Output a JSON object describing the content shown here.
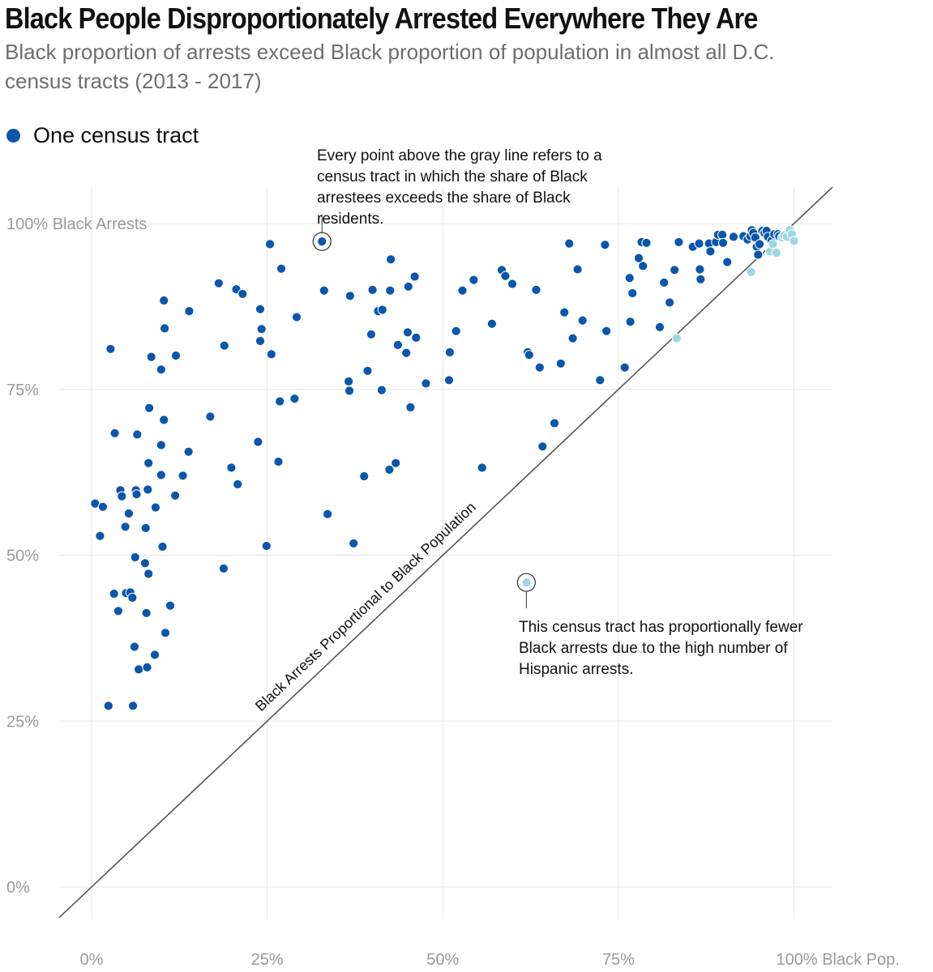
{
  "header": {
    "title": "Black People Disproportionately Arrested Everywhere They Are",
    "subtitle": "Black proportion of arrests exceed Black proportion of population in almost all D.C. census tracts (2013 - 2017)"
  },
  "legend": {
    "label": "One census tract",
    "color": "#0a56ab"
  },
  "chart_data": {
    "type": "scatter",
    "title": "Black People Disproportionately Arrested Everywhere They Are",
    "subtitle": "Black proportion of arrests exceed Black proportion of population in almost all D.C. census tracts (2013 - 2017)",
    "xlabel": "Black Pop.",
    "ylabel": "Black Arrests",
    "xlim": [
      0,
      100
    ],
    "ylim": [
      0,
      100
    ],
    "x_ticks": [
      {
        "value": 0,
        "label": "0%"
      },
      {
        "value": 25,
        "label": "25%"
      },
      {
        "value": 50,
        "label": "50%"
      },
      {
        "value": 75,
        "label": "75%"
      },
      {
        "value": 100,
        "label": "100% Black Pop."
      }
    ],
    "y_ticks": [
      {
        "value": 0,
        "label": "0%"
      },
      {
        "value": 25,
        "label": "25%"
      },
      {
        "value": 50,
        "label": "50%"
      },
      {
        "value": 75,
        "label": "75%"
      },
      {
        "value": 100,
        "label": "100% Black Arrests"
      }
    ],
    "grid": true,
    "colors": {
      "above": "#0a56ab",
      "below": "#9fd6e2",
      "reference_line": "#555555",
      "grid": "#e6e6e6"
    },
    "reference_line": {
      "label": "Black Arrests Proportional to Black Population",
      "slope": 1,
      "intercept": 0
    },
    "points": [
      [
        0.5,
        57.8
      ],
      [
        1.2,
        52.9
      ],
      [
        1.6,
        57.3
      ],
      [
        2.4,
        27.3
      ],
      [
        2.7,
        81.1
      ],
      [
        3.2,
        44.2
      ],
      [
        3.3,
        68.4
      ],
      [
        3.8,
        41.6
      ],
      [
        4.1,
        59.8
      ],
      [
        4.3,
        58.9
      ],
      [
        4.8,
        54.3
      ],
      [
        4.9,
        44.3
      ],
      [
        5.3,
        56.3
      ],
      [
        5.5,
        44.4
      ],
      [
        5.8,
        43.6
      ],
      [
        5.9,
        27.3
      ],
      [
        6.1,
        36.2
      ],
      [
        6.2,
        49.7
      ],
      [
        6.3,
        59.8
      ],
      [
        6.4,
        59.2
      ],
      [
        6.5,
        68.2
      ],
      [
        6.7,
        32.8
      ],
      [
        7.6,
        48.8
      ],
      [
        7.7,
        54.1
      ],
      [
        7.8,
        41.3
      ],
      [
        7.9,
        33.1
      ],
      [
        8.0,
        59.9
      ],
      [
        8.1,
        47.2
      ],
      [
        8.1,
        63.9
      ],
      [
        8.2,
        72.2
      ],
      [
        8.5,
        79.9
      ],
      [
        9.0,
        35.0
      ],
      [
        9.1,
        57.2
      ],
      [
        9.9,
        66.6
      ],
      [
        9.9,
        62.1
      ],
      [
        9.9,
        78.0
      ],
      [
        10.1,
        51.3
      ],
      [
        10.3,
        70.4
      ],
      [
        10.3,
        88.4
      ],
      [
        10.4,
        84.2
      ],
      [
        10.5,
        38.3
      ],
      [
        11.2,
        42.4
      ],
      [
        11.9,
        59.0
      ],
      [
        12.0,
        80.1
      ],
      [
        13.0,
        62.0
      ],
      [
        13.8,
        65.6
      ],
      [
        13.9,
        86.8
      ],
      [
        16.9,
        70.9
      ],
      [
        18.1,
        91.0
      ],
      [
        18.8,
        48.0
      ],
      [
        18.9,
        81.6
      ],
      [
        19.9,
        63.2
      ],
      [
        20.6,
        90.1
      ],
      [
        20.8,
        60.7
      ],
      [
        21.5,
        89.4
      ],
      [
        23.7,
        67.1
      ],
      [
        24.0,
        87.1
      ],
      [
        24.0,
        82.3
      ],
      [
        24.2,
        84.1
      ],
      [
        24.9,
        51.4
      ],
      [
        25.4,
        96.9
      ],
      [
        25.6,
        80.3
      ],
      [
        26.6,
        64.1
      ],
      [
        26.8,
        73.2
      ],
      [
        27.0,
        93.2
      ],
      [
        28.9,
        73.6
      ],
      [
        29.2,
        85.9
      ],
      [
        32.8,
        97.3
      ],
      [
        33.1,
        89.9
      ],
      [
        33.6,
        56.2
      ],
      [
        36.6,
        76.2
      ],
      [
        36.7,
        74.8
      ],
      [
        36.8,
        89.1
      ],
      [
        37.3,
        51.8
      ],
      [
        38.8,
        61.9
      ],
      [
        39.3,
        77.8
      ],
      [
        39.8,
        83.3
      ],
      [
        40.0,
        90.0
      ],
      [
        40.8,
        86.8
      ],
      [
        41.3,
        74.9
      ],
      [
        41.4,
        87.0
      ],
      [
        42.4,
        62.9
      ],
      [
        42.5,
        89.9
      ],
      [
        42.6,
        94.6
      ],
      [
        43.3,
        63.9
      ],
      [
        43.6,
        81.7
      ],
      [
        44.8,
        80.5
      ],
      [
        45.0,
        83.6
      ],
      [
        45.1,
        90.5
      ],
      [
        45.4,
        72.3
      ],
      [
        46.0,
        92.0
      ],
      [
        46.2,
        82.8
      ],
      [
        47.6,
        75.9
      ],
      [
        50.9,
        76.4
      ],
      [
        51.0,
        80.6
      ],
      [
        51.9,
        83.8
      ],
      [
        52.8,
        89.9
      ],
      [
        54.4,
        91.5
      ],
      [
        55.6,
        63.2
      ],
      [
        57.0,
        84.9
      ],
      [
        58.4,
        93.0
      ],
      [
        58.9,
        92.1
      ],
      [
        59.9,
        90.9
      ],
      [
        61.9,
        45.9
      ],
      [
        62.1,
        80.6
      ],
      [
        62.3,
        80.2
      ],
      [
        63.3,
        90.0
      ],
      [
        63.8,
        78.3
      ],
      [
        64.2,
        66.4
      ],
      [
        65.9,
        69.9
      ],
      [
        66.8,
        78.9
      ],
      [
        67.3,
        86.6
      ],
      [
        68.0,
        97.0
      ],
      [
        68.5,
        82.7
      ],
      [
        69.2,
        93.1
      ],
      [
        69.9,
        85.4
      ],
      [
        72.4,
        76.4
      ],
      [
        73.1,
        96.8
      ],
      [
        73.3,
        83.8
      ],
      [
        75.9,
        78.3
      ],
      [
        76.6,
        91.8
      ],
      [
        76.7,
        85.2
      ],
      [
        77.0,
        89.5
      ],
      [
        77.9,
        94.8
      ],
      [
        78.3,
        97.2
      ],
      [
        78.5,
        93.6
      ],
      [
        79.0,
        97.1
      ],
      [
        80.9,
        84.4
      ],
      [
        81.5,
        91.1
      ],
      [
        82.3,
        88.1
      ],
      [
        83.0,
        93.0
      ],
      [
        83.3,
        82.7
      ],
      [
        83.6,
        97.2
      ],
      [
        85.6,
        96.5
      ],
      [
        86.5,
        97.0
      ],
      [
        86.6,
        93.1
      ],
      [
        86.7,
        91.6
      ],
      [
        87.9,
        97.0
      ],
      [
        88.1,
        95.8
      ],
      [
        88.9,
        97.2
      ],
      [
        89.2,
        98.3
      ],
      [
        89.8,
        98.3
      ],
      [
        89.9,
        97.1
      ],
      [
        90.5,
        94.2
      ],
      [
        91.4,
        98.0
      ],
      [
        92.8,
        98.1
      ],
      [
        93.4,
        97.6
      ],
      [
        93.8,
        98.1
      ],
      [
        93.9,
        92.7
      ],
      [
        94.0,
        99.0
      ],
      [
        94.2,
        98.6
      ],
      [
        94.5,
        97.9
      ],
      [
        94.7,
        96.5
      ],
      [
        94.9,
        95.3
      ],
      [
        95.1,
        96.9
      ],
      [
        95.5,
        98.9
      ],
      [
        95.8,
        98.6
      ],
      [
        96.1,
        98.9
      ],
      [
        96.3,
        98.0
      ],
      [
        96.6,
        95.8
      ],
      [
        96.8,
        97.4
      ],
      [
        97.0,
        96.9
      ],
      [
        97.2,
        98.4
      ],
      [
        97.5,
        95.6
      ],
      [
        97.7,
        98.4
      ],
      [
        97.9,
        98.1
      ],
      [
        98.3,
        97.9
      ],
      [
        98.6,
        98.2
      ],
      [
        99.0,
        98.0
      ],
      [
        99.4,
        99.0
      ],
      [
        99.7,
        98.4
      ],
      [
        100.0,
        97.4
      ]
    ],
    "annotations": [
      {
        "text": "Every point above the gray line refers to a census tract in which the share of Black arrestees exceeds the share of Black residents.",
        "point": [
          32.8,
          97.3
        ]
      },
      {
        "text": "This census tract has proportionally fewer Black arrests due to the high number of Hispanic arrests.",
        "point": [
          61.9,
          45.9
        ]
      }
    ]
  }
}
